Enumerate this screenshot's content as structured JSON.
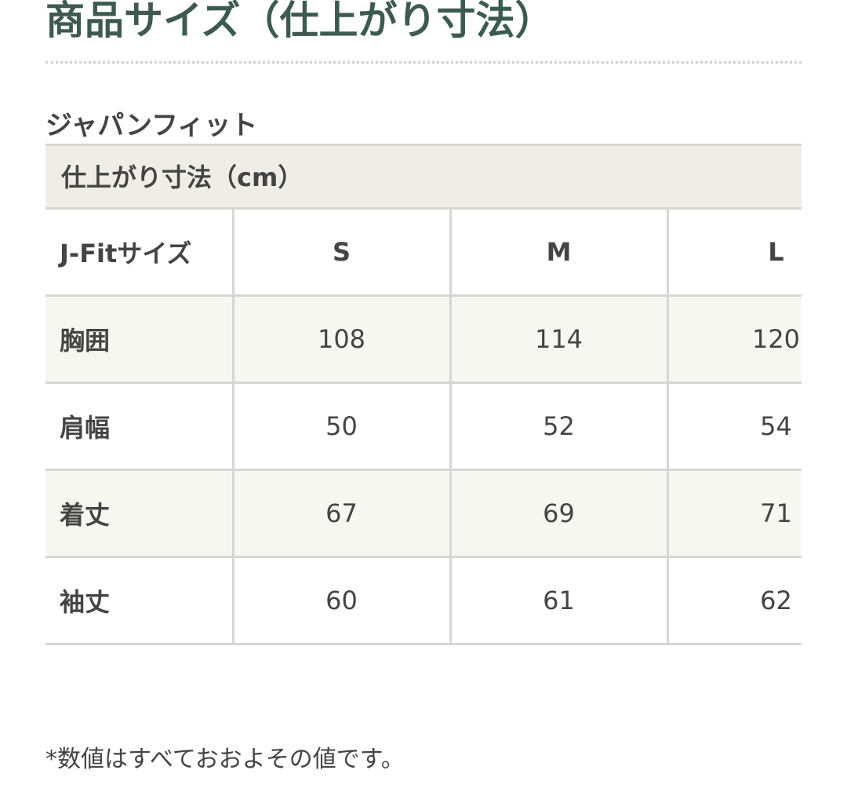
{
  "title": "商品サイズ（仕上がり寸法）",
  "subtitle": "ジャパンフィット",
  "table": {
    "caption": "仕上がり寸法（cm）",
    "header": [
      "J-Fitサイズ",
      "S",
      "M",
      "L"
    ],
    "rows": [
      [
        "胸囲",
        "108",
        "114",
        "120"
      ],
      [
        "肩幅",
        "50",
        "52",
        "54"
      ],
      [
        "着丈",
        "67",
        "69",
        "71"
      ],
      [
        "袖丈",
        "60",
        "61",
        "62"
      ]
    ]
  },
  "note": "*数値はすべておおよその値です。",
  "colors": {
    "title": "#3d5a4e",
    "caption_bg": "#efeee6"
  }
}
